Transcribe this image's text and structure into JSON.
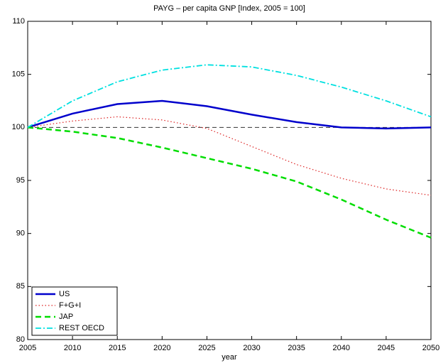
{
  "chart_data": {
    "type": "line",
    "title": "PAYG – per capita GNP [Index, 2005 = 100]",
    "x_label": "year",
    "x": [
      2005,
      2010,
      2015,
      2020,
      2025,
      2030,
      2035,
      2040,
      2045,
      2050
    ],
    "series": [
      {
        "name": "US",
        "color": "#0000cc",
        "style": "solid",
        "values": [
          100,
          101.3,
          102.2,
          102.5,
          102.0,
          101.2,
          100.5,
          100.0,
          99.9,
          100.0
        ]
      },
      {
        "name": "F+G+I",
        "color": "#dd2222",
        "style": "dotted",
        "values": [
          100,
          100.6,
          101.0,
          100.7,
          99.9,
          98.2,
          96.5,
          95.2,
          94.2,
          93.6
        ]
      },
      {
        "name": "JAP",
        "color": "#00dd00",
        "style": "dashed",
        "values": [
          100,
          99.6,
          99.0,
          98.1,
          97.1,
          96.1,
          94.9,
          93.2,
          91.3,
          89.6
        ]
      },
      {
        "name": "REST OECD",
        "color": "#00e0e0",
        "style": "dashdot",
        "values": [
          100,
          102.5,
          104.3,
          105.4,
          105.9,
          105.7,
          104.9,
          103.8,
          102.5,
          101.0
        ]
      }
    ],
    "reference_line": 100,
    "xlim": [
      2005,
      2050
    ],
    "xticks": [
      2005,
      2010,
      2015,
      2020,
      2025,
      2030,
      2035,
      2040,
      2045,
      2050
    ],
    "ylim": [
      80,
      110
    ],
    "yticks": [
      80,
      85,
      90,
      95,
      100,
      105,
      110
    ],
    "legend": "lower left"
  }
}
